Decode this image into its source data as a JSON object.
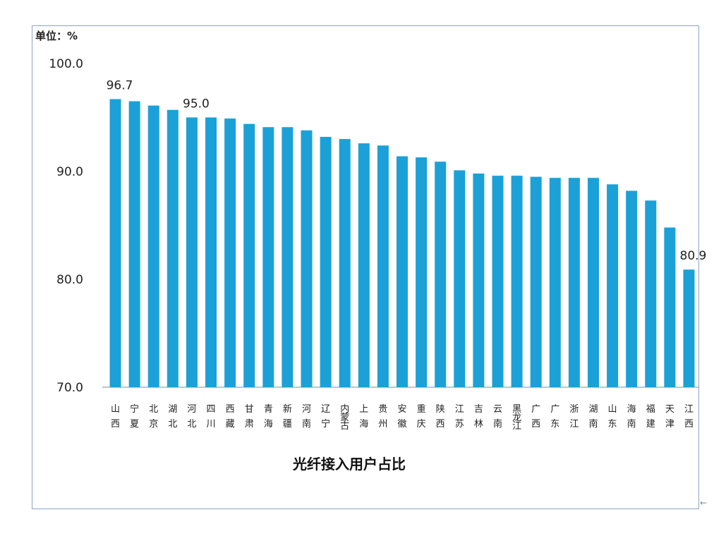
{
  "chart_data": {
    "type": "bar",
    "title": "光纤接入用户占比",
    "unit_label": "单位：%",
    "ylim": [
      70,
      100
    ],
    "yticks": [
      "70.0",
      "80.0",
      "90.0",
      "100.0"
    ],
    "grid": false,
    "legend": "none",
    "bar_color": "#1ba1d8",
    "categories": [
      "山西",
      "宁夏",
      "北京",
      "湖北",
      "河北",
      "四川",
      "西藏",
      "甘肃",
      "青海",
      "新疆",
      "河南",
      "辽宁",
      "内蒙古",
      "上海",
      "贵州",
      "安徽",
      "重庆",
      "陕西",
      "江苏",
      "吉林",
      "云南",
      "黑龙江",
      "广西",
      "广东",
      "浙江",
      "湖南",
      "山东",
      "海南",
      "福建",
      "天津",
      "江西"
    ],
    "values": [
      96.7,
      96.5,
      96.1,
      95.7,
      95.0,
      95.0,
      94.9,
      94.4,
      94.1,
      94.1,
      93.8,
      93.2,
      93.0,
      92.6,
      92.4,
      91.4,
      91.3,
      90.9,
      90.1,
      89.8,
      89.6,
      89.6,
      89.5,
      89.4,
      89.4,
      89.4,
      88.8,
      88.2,
      87.3,
      84.8,
      80.9
    ],
    "data_labels": [
      {
        "index": 0,
        "text": "96.7"
      },
      {
        "index": 4,
        "text": "95.0"
      },
      {
        "index": 30,
        "text": "80.9"
      }
    ]
  }
}
